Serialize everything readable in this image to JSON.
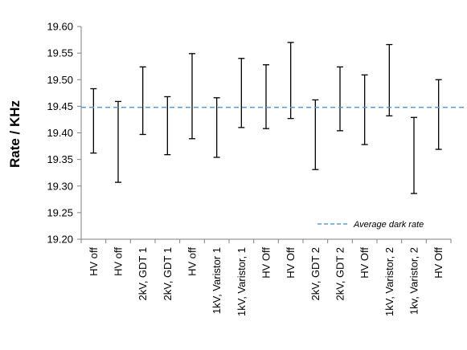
{
  "chart_data": {
    "type": "errorbar",
    "ylabel": "Rate / KHz",
    "xlabel": "",
    "ylim": [
      19.2,
      19.6
    ],
    "y_ticks": [
      "19.20",
      "19.25",
      "19.30",
      "19.35",
      "19.40",
      "19.45",
      "19.50",
      "19.55",
      "19.60"
    ],
    "y_tick_values": [
      19.2,
      19.25,
      19.3,
      19.35,
      19.4,
      19.45,
      19.5,
      19.55,
      19.6
    ],
    "categories": [
      "HV off",
      "HV off",
      "2kV, GDT 1",
      "2kV, GDT 1",
      "HV off",
      "1kV, Varistor 1",
      "1kV, Varistor, 1",
      "HV Off",
      "HV Off",
      "2kV, GDT 2",
      "2kV, GDT 2",
      "HV Off",
      "1kV, Varistor, 2",
      "1kv, Varistor, 2",
      "HV Off"
    ],
    "lower": [
      19.362,
      19.307,
      19.397,
      19.359,
      19.389,
      19.354,
      19.41,
      19.408,
      19.427,
      19.331,
      19.404,
      19.378,
      19.432,
      19.286,
      19.369
    ],
    "upper": [
      19.483,
      19.459,
      19.524,
      19.468,
      19.549,
      19.466,
      19.54,
      19.528,
      19.57,
      19.462,
      19.524,
      19.509,
      19.566,
      19.429,
      19.5
    ],
    "reference_line": {
      "name": "Average dark rate",
      "value": 19.448,
      "color": "#5b9bd5"
    },
    "grid": false,
    "legend_position": "bottom-right",
    "colors": {
      "bars": "#000000",
      "axis": "#808080"
    }
  }
}
